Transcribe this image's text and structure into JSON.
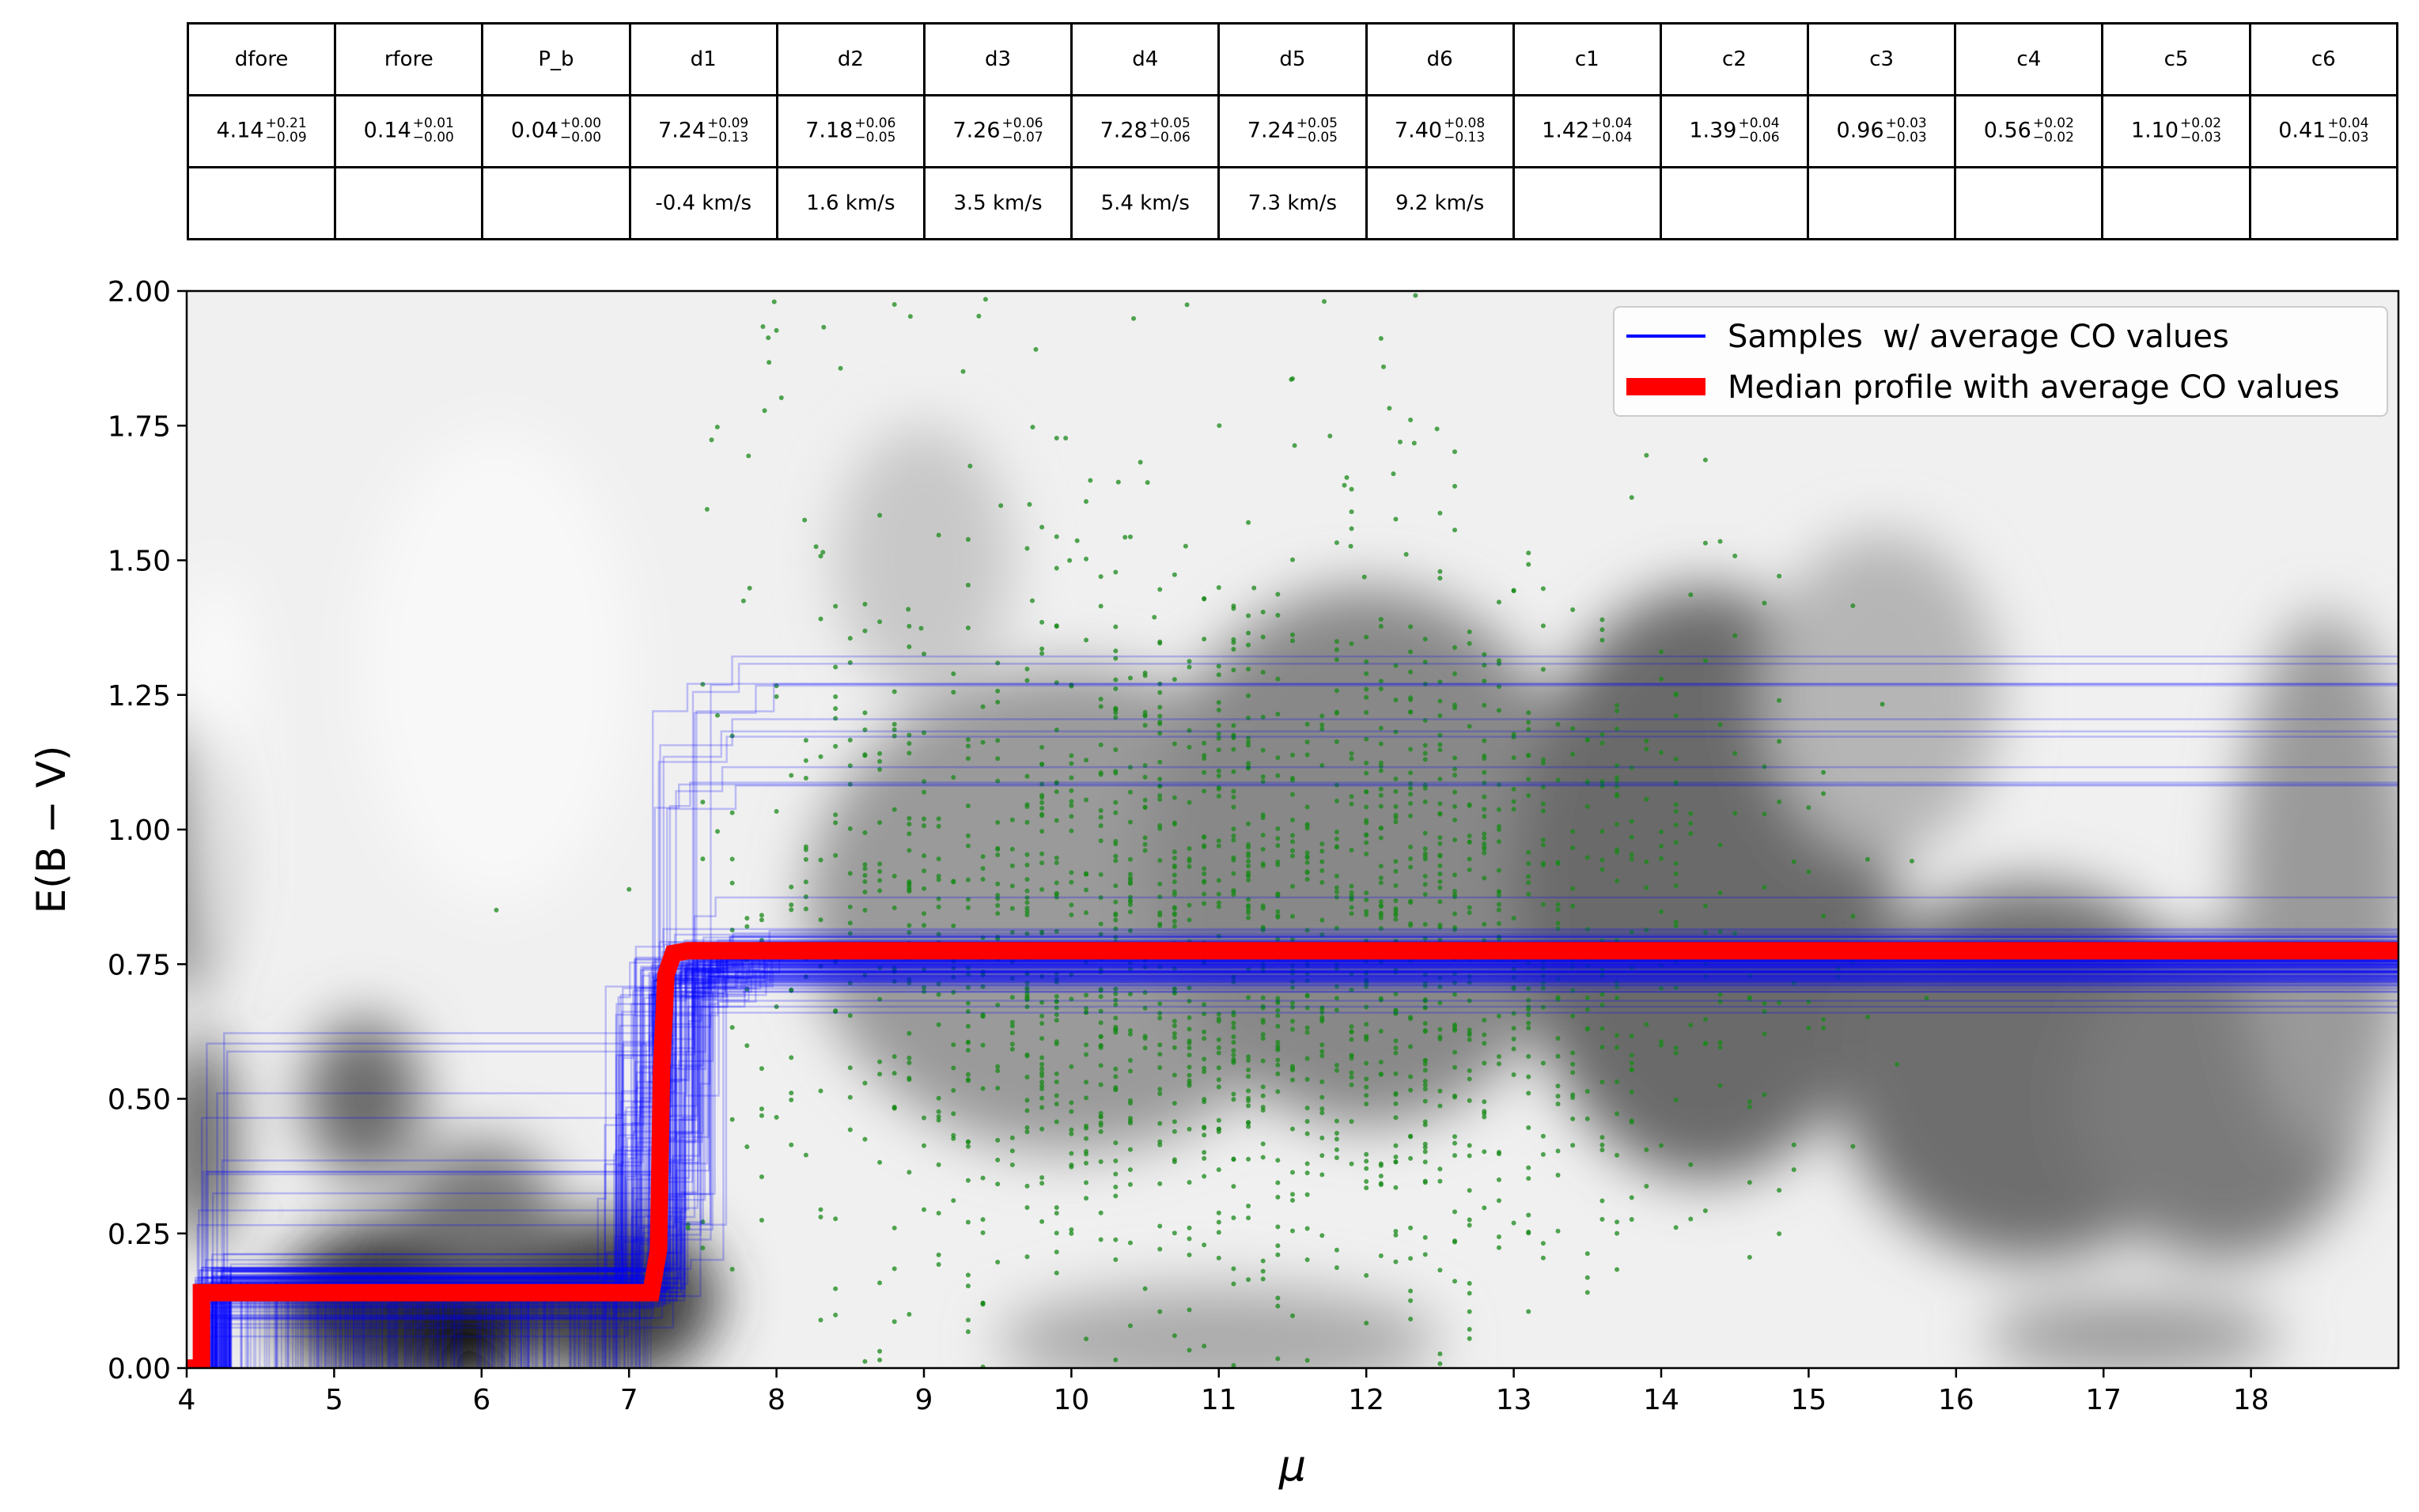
{
  "table": {
    "columns": [
      "dfore",
      "rfore",
      "P_b",
      "d1",
      "d2",
      "d3",
      "d4",
      "d5",
      "d6",
      "c1",
      "c2",
      "c3",
      "c4",
      "c5",
      "c6"
    ],
    "values": [
      {
        "v": "4.14",
        "plus": "+0.21",
        "minus": "−0.09"
      },
      {
        "v": "0.14",
        "plus": "+0.01",
        "minus": "−0.00"
      },
      {
        "v": "0.04",
        "plus": "+0.00",
        "minus": "−0.00"
      },
      {
        "v": "7.24",
        "plus": "+0.09",
        "minus": "−0.13"
      },
      {
        "v": "7.18",
        "plus": "+0.06",
        "minus": "−0.05"
      },
      {
        "v": "7.26",
        "plus": "+0.06",
        "minus": "−0.07"
      },
      {
        "v": "7.28",
        "plus": "+0.05",
        "minus": "−0.06"
      },
      {
        "v": "7.24",
        "plus": "+0.05",
        "minus": "−0.05"
      },
      {
        "v": "7.40",
        "plus": "+0.08",
        "minus": "−0.13"
      },
      {
        "v": "1.42",
        "plus": "+0.04",
        "minus": "−0.04"
      },
      {
        "v": "1.39",
        "plus": "+0.04",
        "minus": "−0.06"
      },
      {
        "v": "0.96",
        "plus": "+0.03",
        "minus": "−0.03"
      },
      {
        "v": "0.56",
        "plus": "+0.02",
        "minus": "−0.02"
      },
      {
        "v": "1.10",
        "plus": "+0.02",
        "minus": "−0.03"
      },
      {
        "v": "0.41",
        "plus": "+0.04",
        "minus": "−0.03"
      }
    ],
    "velocities": [
      "",
      "",
      "",
      "-0.4 km/s",
      "1.6 km/s",
      "3.5 km/s",
      "5.4 km/s",
      "7.3 km/s",
      "9.2 km/s",
      "",
      "",
      "",
      "",
      "",
      ""
    ]
  },
  "chart_data": {
    "type": "line",
    "xlabel": "μ",
    "ylabel": "E(B − V)",
    "xlim": [
      4,
      19
    ],
    "ylim": [
      0,
      2
    ],
    "xticks": [
      4,
      5,
      6,
      7,
      8,
      9,
      10,
      11,
      12,
      13,
      14,
      15,
      16,
      17,
      18
    ],
    "yticks": [
      0.0,
      0.25,
      0.5,
      0.75,
      1.0,
      1.25,
      1.5,
      1.75,
      2.0
    ],
    "ytick_labels": [
      "0.00",
      "0.25",
      "0.50",
      "0.75",
      "1.00",
      "1.25",
      "1.50",
      "1.75",
      "2.00"
    ],
    "legend_position": "top-right",
    "series": [
      {
        "name": "Samples  w/ average CO values",
        "color": "#0000ff",
        "style": "thin-semitransparent-steps",
        "step_x": [
          4.15,
          7.2,
          7.3,
          7.8
        ],
        "plateau_low": 0.15,
        "plateau_high_range": [
          0.7,
          1.35
        ]
      },
      {
        "name": "Median profile with average CO values",
        "color": "#ff0000",
        "style": "thick-step",
        "x": [
          4.0,
          4.1,
          4.1,
          7.15,
          7.2,
          7.22,
          7.25,
          7.3,
          7.4,
          19.0
        ],
        "y": [
          0.0,
          0.0,
          0.14,
          0.14,
          0.22,
          0.55,
          0.73,
          0.77,
          0.775,
          0.775
        ]
      }
    ],
    "stars": {
      "color": "#008000",
      "description": "individual star extinctions (scatter)",
      "x_range": [
        4.5,
        16.5
      ],
      "y_range": [
        0,
        2
      ]
    },
    "background": {
      "description": "grayscale density map"
    }
  }
}
